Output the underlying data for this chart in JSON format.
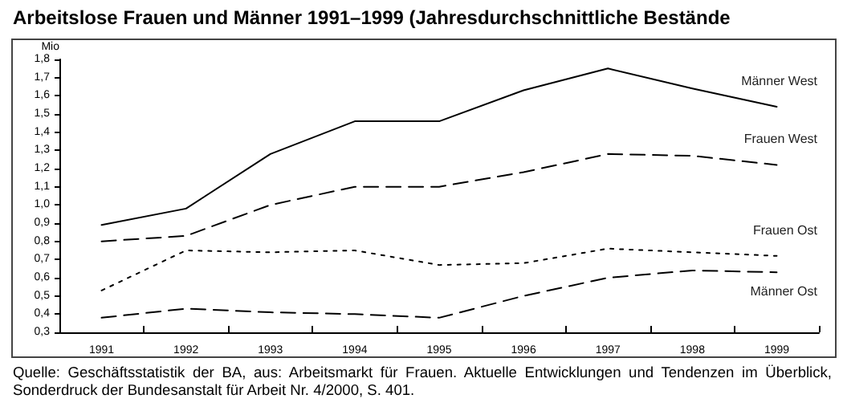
{
  "chart_data": {
    "type": "line",
    "title": "Arbeitslose Frauen und Männer 1991–1999 (Jahresdurchschnittliche Bestände",
    "ylabel": "Mio",
    "categories": [
      "1991",
      "1992",
      "1993",
      "1994",
      "1995",
      "1996",
      "1997",
      "1998",
      "1999"
    ],
    "series": [
      {
        "name": "Männer West",
        "color": "#000000",
        "line_style": "solid",
        "values": [
          0.89,
          0.98,
          1.28,
          1.46,
          1.46,
          1.63,
          1.75,
          1.64,
          1.54
        ]
      },
      {
        "name": "Frauen West",
        "color": "#000000",
        "line_style": "dashed",
        "values": [
          0.8,
          0.83,
          1.0,
          1.1,
          1.1,
          1.18,
          1.28,
          1.27,
          1.22
        ]
      },
      {
        "name": "Frauen Ost",
        "color": "#000000",
        "line_style": "dotted",
        "values": [
          0.53,
          0.75,
          0.74,
          0.75,
          0.67,
          0.68,
          0.76,
          0.74,
          0.72
        ]
      },
      {
        "name": "Männer Ost",
        "color": "#000000",
        "line_style": "dashed",
        "values": [
          0.38,
          0.43,
          0.41,
          0.4,
          0.38,
          0.5,
          0.6,
          0.64,
          0.63
        ]
      }
    ],
    "ylim": [
      0.3,
      1.8
    ],
    "yticks": [
      {
        "value": 0.3,
        "label": "0,3"
      },
      {
        "value": 0.4,
        "label": "0,4"
      },
      {
        "value": 0.5,
        "label": "0,5"
      },
      {
        "value": 0.6,
        "label": "0,6"
      },
      {
        "value": 0.7,
        "label": "0,7"
      },
      {
        "value": 0.8,
        "label": "0,8"
      },
      {
        "value": 0.9,
        "label": "0,9"
      },
      {
        "value": 1.0,
        "label": "1,0"
      },
      {
        "value": 1.1,
        "label": "1,1"
      },
      {
        "value": 1.2,
        "label": "1,2"
      },
      {
        "value": 1.3,
        "label": "1,3"
      },
      {
        "value": 1.4,
        "label": "1,4"
      },
      {
        "value": 1.5,
        "label": "1,5"
      },
      {
        "value": 1.6,
        "label": "1,6"
      },
      {
        "value": 1.7,
        "label": "1,7"
      },
      {
        "value": 1.8,
        "label": "1,8"
      }
    ],
    "grid": false,
    "legend": false,
    "marker": "none",
    "annotations": [
      "Quelle: Geschäftsstatistik der BA, aus: Arbeitsmarkt für Frauen. Aktuelle Entwicklungen und Tendenzen im Überblick, Sonderdruck der Bundesanstalt für Arbeit Nr. 4/2000, S. 401."
    ]
  }
}
